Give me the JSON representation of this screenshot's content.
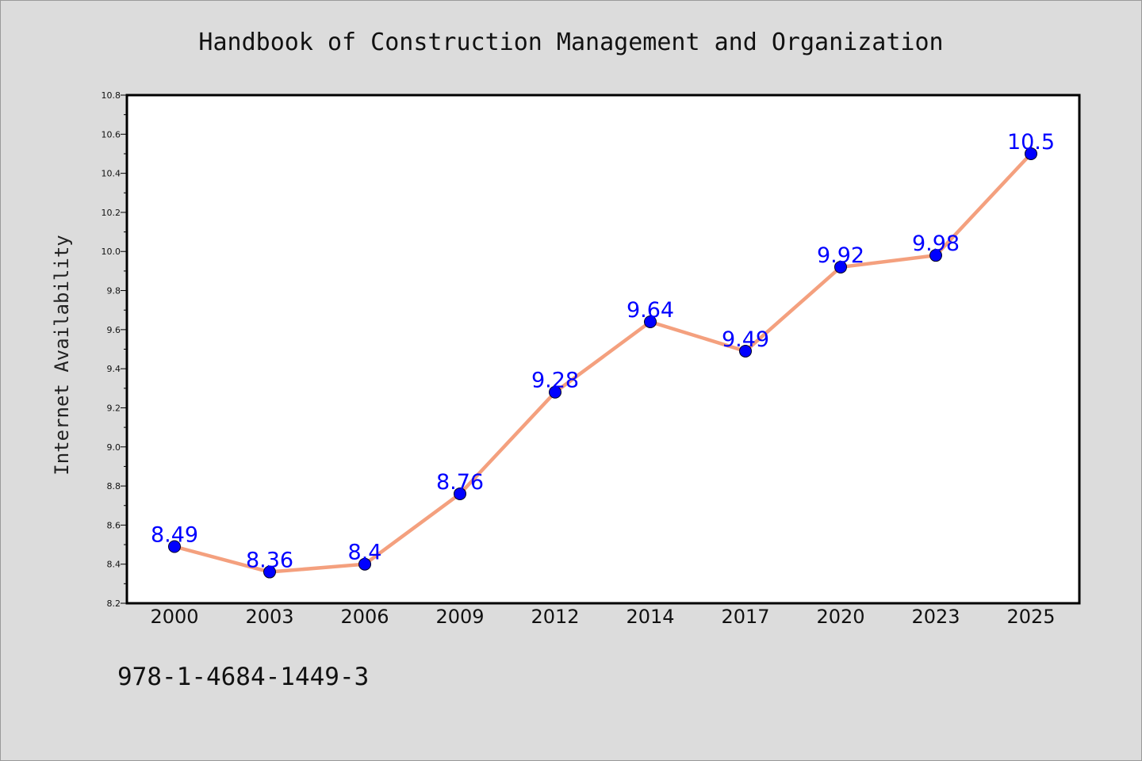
{
  "title": "Handbook of Construction Management and Organization",
  "footer_text": "978-1-4684-1449-3",
  "colors": {
    "background": "#dcdcdc",
    "plot_background": "#ffffff",
    "line": "#f4a07e",
    "marker": "#0000ff",
    "data_label": "#0000ff"
  },
  "chart_data": {
    "type": "line",
    "title": "Handbook of Construction Management and Organization",
    "xlabel": "",
    "ylabel": "Internet Availability",
    "categories": [
      "2000",
      "2003",
      "2006",
      "2009",
      "2012",
      "2014",
      "2017",
      "2020",
      "2023",
      "2025"
    ],
    "series": [
      {
        "values": [
          8.49,
          8.36,
          8.4,
          8.76,
          9.28,
          9.64,
          9.49,
          9.92,
          9.98,
          10.5
        ],
        "labels": [
          "8.49",
          "8.36",
          "8.4",
          "8.76",
          "9.28",
          "9.64",
          "9.49",
          "9.92",
          "9.98",
          "10.5"
        ]
      }
    ],
    "ylim": [
      8.2,
      10.8
    ],
    "yticks": [
      "8.2",
      "8.4",
      "8.6",
      "8.8",
      "9.0",
      "9.2",
      "9.4",
      "9.6",
      "9.8",
      "10.0",
      "10.2",
      "10.4",
      "10.6",
      "10.8"
    ],
    "grid": false,
    "legend": "none"
  }
}
